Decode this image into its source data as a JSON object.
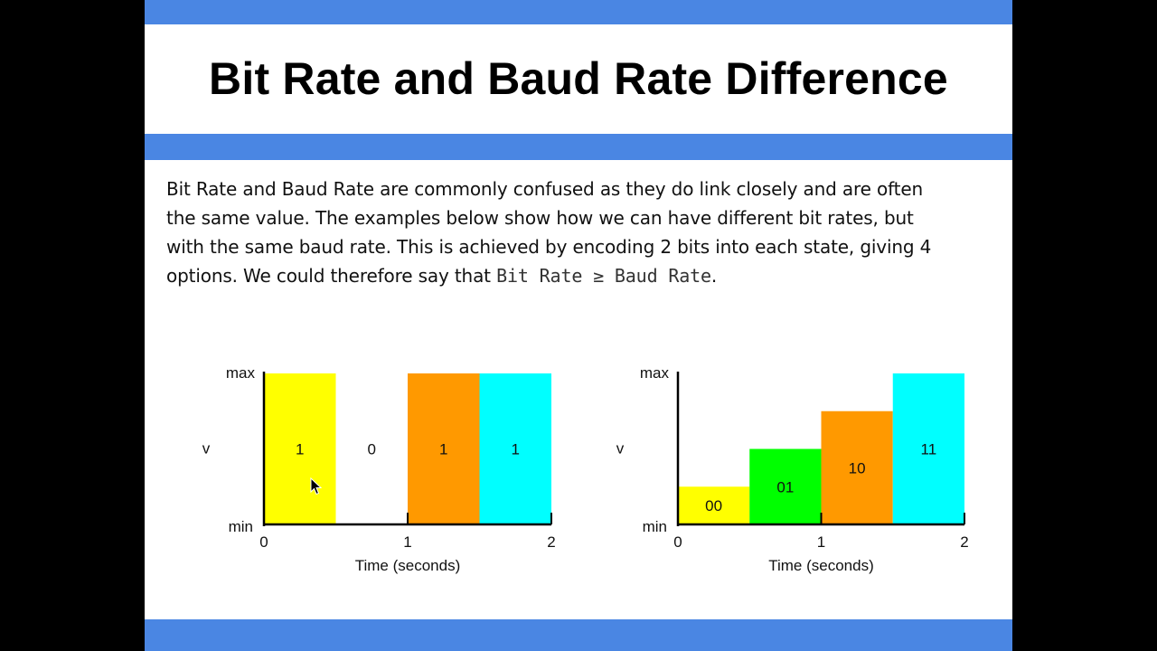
{
  "slide": {
    "title": "Bit Rate and Baud Rate Difference",
    "para": {
      "lines": [
        "Bit Rate and Baud Rate are commonly confused as they do link closely and are often",
        "the same value. The examples below show how we can have different bit rates, but",
        "with the same baud rate. This is achieved by encoding 2 bits into each state, giving 4"
      ],
      "line4_prefix": "options. We could therefore say that ",
      "formula": "Bit Rate ≥ Baud Rate",
      "line4_suffix": "."
    }
  },
  "colors": {
    "band": "#4a86e3",
    "yellow": "#ffff00",
    "orange": "#ff9900",
    "cyan": "#00ffff",
    "green": "#00ff00"
  },
  "chart_data": [
    {
      "type": "bar",
      "xlabel": "Time (seconds)",
      "ylabel": "v",
      "y_min_label": "min",
      "y_max_label": "max",
      "x_ticks": [
        "0",
        "1",
        "2"
      ],
      "xlim": [
        0,
        2
      ],
      "ylim": [
        0,
        1
      ],
      "bars": [
        {
          "x0": 0,
          "x1": 0.5,
          "level": 1,
          "label": "1",
          "color": "#ffff00"
        },
        {
          "x0": 0.5,
          "x1": 1,
          "level": 0,
          "label": "0",
          "color": "#ffffff"
        },
        {
          "x0": 1,
          "x1": 1.5,
          "level": 1,
          "label": "1",
          "color": "#ff9900"
        },
        {
          "x0": 1.5,
          "x1": 2,
          "level": 1,
          "label": "1",
          "color": "#00ffff"
        }
      ]
    },
    {
      "type": "bar",
      "xlabel": "Time (seconds)",
      "ylabel": "v",
      "y_min_label": "min",
      "y_max_label": "max",
      "x_ticks": [
        "0",
        "1",
        "2"
      ],
      "xlim": [
        0,
        2
      ],
      "ylim": [
        0,
        1
      ],
      "bars": [
        {
          "x0": 0,
          "x1": 0.5,
          "level": 0.25,
          "label": "00",
          "color": "#ffff00"
        },
        {
          "x0": 0.5,
          "x1": 1,
          "level": 0.5,
          "label": "01",
          "color": "#00ff00"
        },
        {
          "x0": 1,
          "x1": 1.5,
          "level": 0.75,
          "label": "10",
          "color": "#ff9900"
        },
        {
          "x0": 1.5,
          "x1": 2,
          "level": 1,
          "label": "11",
          "color": "#00ffff"
        }
      ]
    }
  ]
}
